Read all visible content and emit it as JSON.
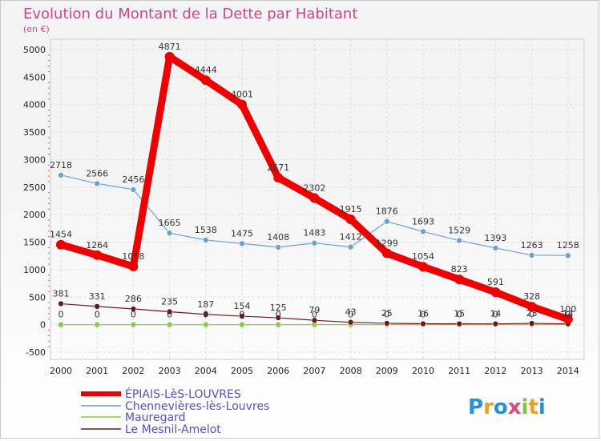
{
  "chart_data": {
    "type": "line",
    "title": "Evolution du Montant de la Dette par Habitant",
    "subtitle": "(en €)",
    "x": [
      "2000",
      "2001",
      "2002",
      "2003",
      "2004",
      "2005",
      "2006",
      "2007",
      "2008",
      "2009",
      "2010",
      "2011",
      "2012",
      "2013",
      "2014"
    ],
    "y_ticks": [
      "5000",
      "4500",
      "4000",
      "3500",
      "3000",
      "2500",
      "2000",
      "1500",
      "1000",
      "500",
      "0",
      "-500"
    ],
    "ylim": [
      -500,
      5000
    ],
    "grid": true,
    "legend_position": "bottom-left",
    "series": [
      {
        "name": "ÉPIAIS-LèS-LOUVRES",
        "color": "#ee0000",
        "values": [
          1454,
          1264,
          1058,
          4871,
          4444,
          4001,
          2671,
          2302,
          1915,
          1299,
          1054,
          823,
          591,
          328,
          100
        ]
      },
      {
        "name": "Chennevières-lès-Louvres",
        "color": "#6ca0d0",
        "values": [
          2718,
          2566,
          2456,
          1665,
          1538,
          1475,
          1408,
          1483,
          1412,
          1876,
          1693,
          1529,
          1393,
          1263,
          1258
        ]
      },
      {
        "name": "Mauregard",
        "color": "#88cc44",
        "values": [
          0,
          0,
          0,
          0,
          0,
          0,
          0,
          0,
          0,
          0,
          0,
          0,
          0,
          0,
          0
        ]
      },
      {
        "name": "Le Mesnil-Amelot",
        "color": "#6b1a1a",
        "values": [
          381,
          331,
          286,
          235,
          187,
          154,
          125,
          79,
          43,
          25,
          16,
          15,
          14,
          23,
          14
        ]
      }
    ],
    "data_labels": [
      {
        "series": 0,
        "labels": [
          "1454",
          "1264",
          "1058",
          "4871",
          "4444",
          "4001",
          "2671",
          "2302",
          "1915",
          "1299",
          "1054",
          "823",
          "591",
          "328",
          "100"
        ]
      },
      {
        "series": 1,
        "labels": [
          "2718",
          "2566",
          "2456",
          "1665",
          "1538",
          "1475",
          "1408",
          "1483",
          "1412",
          "1876",
          "1693",
          "1529",
          "1393",
          "1263",
          "1258"
        ]
      },
      {
        "series": 2,
        "labels": [
          "0",
          "0",
          "0",
          "0",
          "0",
          "0",
          "0",
          "0",
          "0",
          "0",
          "0",
          "0",
          "0",
          "0",
          "0"
        ]
      },
      {
        "series": 3,
        "labels": [
          "381",
          "331",
          "286",
          "235",
          "187",
          "154",
          "125",
          "79",
          "43",
          "25",
          "16",
          "15",
          "14",
          "23",
          "14"
        ]
      }
    ]
  },
  "logo": {
    "text": "Proxiti"
  }
}
